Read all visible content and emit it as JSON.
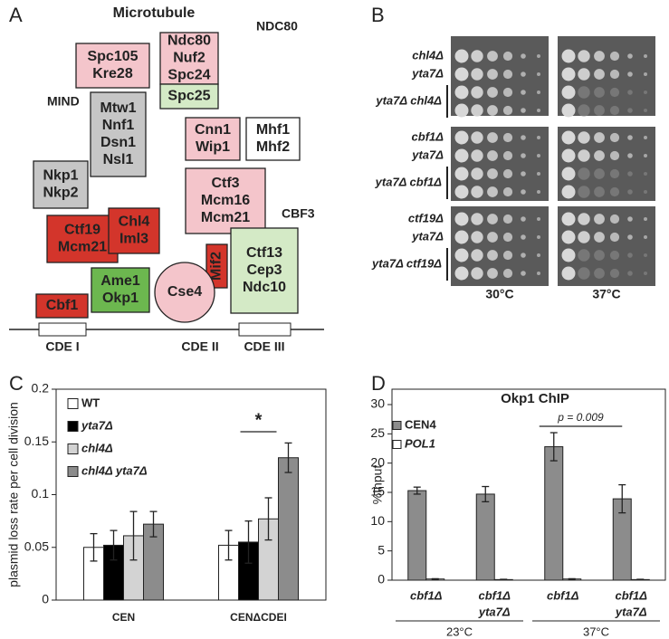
{
  "panel_a": {
    "label": "A",
    "title": "Microtubule",
    "group_labels": [
      "NDC80",
      "MIND",
      "CBF3"
    ],
    "nodes": [
      {
        "lines": [
          "Spc105",
          "Kre28"
        ]
      },
      {
        "lines": [
          "Ndc80",
          "Nuf2",
          "Spc24"
        ]
      },
      {
        "lines": [
          "Spc25"
        ]
      },
      {
        "lines": [
          "Mtw1",
          "Nnf1",
          "Dsn1",
          "Nsl1"
        ]
      },
      {
        "lines": [
          "Cnn1",
          "Wip1"
        ]
      },
      {
        "lines": [
          "Mhf1",
          "Mhf2"
        ]
      },
      {
        "lines": [
          "Nkp1",
          "Nkp2"
        ]
      },
      {
        "lines": [
          "Ctf3",
          "Mcm16",
          "Mcm21"
        ]
      },
      {
        "lines": [
          "Ctf19",
          "Mcm21"
        ]
      },
      {
        "lines": [
          "Chl4",
          "Iml3"
        ]
      },
      {
        "lines": [
          "Mif2"
        ]
      },
      {
        "lines": [
          "Ctf13",
          "Cep3",
          "Ndc10"
        ]
      },
      {
        "lines": [
          "Ame1",
          "Okp1"
        ]
      },
      {
        "lines": [
          "Cse4"
        ]
      },
      {
        "lines": [
          "Cbf1"
        ]
      }
    ],
    "dna_elements": [
      "CDE I",
      "CDE II",
      "CDE III"
    ]
  },
  "panel_b": {
    "label": "B",
    "plates": [
      {
        "rows": [
          "chl4Δ",
          "yta7Δ",
          "yta7Δ chl4Δ"
        ]
      },
      {
        "rows": [
          "cbf1Δ",
          "yta7Δ",
          "yta7Δ cbf1Δ"
        ]
      },
      {
        "rows": [
          "ctf19Δ",
          "yta7Δ",
          "yta7Δ ctf19Δ"
        ]
      }
    ],
    "temperatures": [
      "30°C",
      "37°C"
    ]
  },
  "panel_labels": [
    "C",
    "D"
  ],
  "chart_data": [
    {
      "type": "bar",
      "y_label": "plasmid loss rate per cell division",
      "categories": [
        "CEN",
        "CENΔCDEI"
      ],
      "series": [
        {
          "name": "WT",
          "color": "#ffffff",
          "values": [
            0.05,
            0.052
          ],
          "errors": [
            0.013,
            0.014
          ]
        },
        {
          "name": "yta7Δ",
          "color": "#000000",
          "values": [
            0.052,
            0.055
          ],
          "errors": [
            0.014,
            0.02
          ]
        },
        {
          "name": "chl4Δ",
          "color": "#d3d3d3",
          "values": [
            0.061,
            0.077
          ],
          "errors": [
            0.023,
            0.02
          ]
        },
        {
          "name": "chl4Δ yta7Δ",
          "color": "#8c8c8c",
          "values": [
            0.072,
            0.135
          ],
          "errors": [
            0.012,
            0.014
          ]
        }
      ],
      "ylim": [
        0,
        0.2
      ],
      "yticks": [
        0,
        0.05,
        0.1,
        0.15,
        0.2
      ],
      "annotation": "*",
      "legend": "upper left"
    },
    {
      "type": "bar",
      "title": "Okp1 ChIP",
      "y_label": "%Input",
      "categories": [
        [
          "cbf1Δ"
        ],
        [
          "cbf1Δ",
          "yta7Δ"
        ],
        [
          "cbf1Δ"
        ],
        [
          "cbf1Δ",
          "yta7Δ"
        ]
      ],
      "group_labels": [
        "23°C",
        "37°C"
      ],
      "series": [
        {
          "name": "CEN4",
          "color": "#8c8c8c",
          "values": [
            15.3,
            14.7,
            22.8,
            13.9
          ],
          "errors": [
            0.6,
            1.3,
            2.4,
            2.4
          ]
        },
        {
          "name": "POL1",
          "color": "#ffffff",
          "values": [
            0.2,
            0.1,
            0.2,
            0.1
          ],
          "errors": [
            0.05,
            0.05,
            0.05,
            0.05
          ]
        }
      ],
      "ylim": [
        0,
        30
      ],
      "yticks": [
        0,
        5,
        10,
        15,
        20,
        25,
        30
      ],
      "annotation": "p = 0.009",
      "legend": "upper left"
    }
  ]
}
